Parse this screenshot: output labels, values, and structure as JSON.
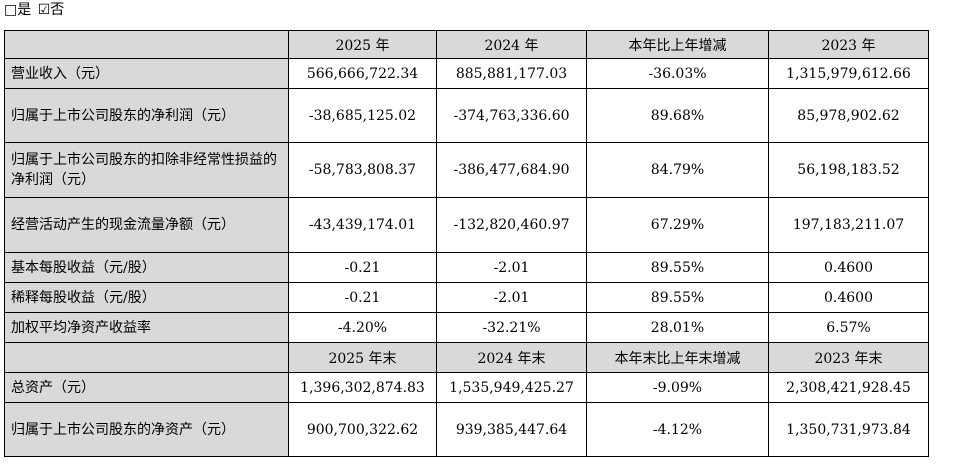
{
  "options": {
    "yes": "□是",
    "no": "☑否"
  },
  "header1": [
    "",
    "2025 年",
    "2024 年",
    "本年比上年增减",
    "2023 年"
  ],
  "rows1": [
    {
      "label": "营业收入（元）",
      "values": [
        "566,666,722.34",
        "885,881,177.03",
        "-36.03%",
        "1,315,979,612.66"
      ]
    },
    {
      "label": "归属于上市公司股东的净利润（元）",
      "values": [
        "-38,685,125.02",
        "-374,763,336.60",
        "89.68%",
        "85,978,902.62"
      ]
    },
    {
      "label": "归属于上市公司股东的扣除非经常性损益的净利润（元）",
      "values": [
        "-58,783,808.37",
        "-386,477,684.90",
        "84.79%",
        "56,198,183.52"
      ]
    },
    {
      "label": "经营活动产生的现金流量净额（元）",
      "values": [
        "-43,439,174.01",
        "-132,820,460.97",
        "67.29%",
        "197,183,211.07"
      ]
    },
    {
      "label": "基本每股收益（元/股）",
      "values": [
        "-0.21",
        "-2.01",
        "89.55%",
        "0.4600"
      ]
    },
    {
      "label": "稀释每股收益（元/股）",
      "values": [
        "-0.21",
        "-2.01",
        "89.55%",
        "0.4600"
      ]
    },
    {
      "label": "加权平均净资产收益率",
      "values": [
        "-4.20%",
        "-32.21%",
        "28.01%",
        "6.57%"
      ]
    }
  ],
  "header2": [
    "",
    "2025 年末",
    "2024 年末",
    "本年末比上年末增减",
    "2023 年末"
  ],
  "rows2": [
    {
      "label": "总资产（元）",
      "values": [
        "1,396,302,874.83",
        "1,535,949,425.27",
        "-9.09%",
        "2,308,421,928.45"
      ]
    },
    {
      "label": "归属于上市公司股东的净资产（元）",
      "values": [
        "900,700,322.62",
        "939,385,447.64",
        "-4.12%",
        "1,350,731,973.84"
      ]
    }
  ]
}
